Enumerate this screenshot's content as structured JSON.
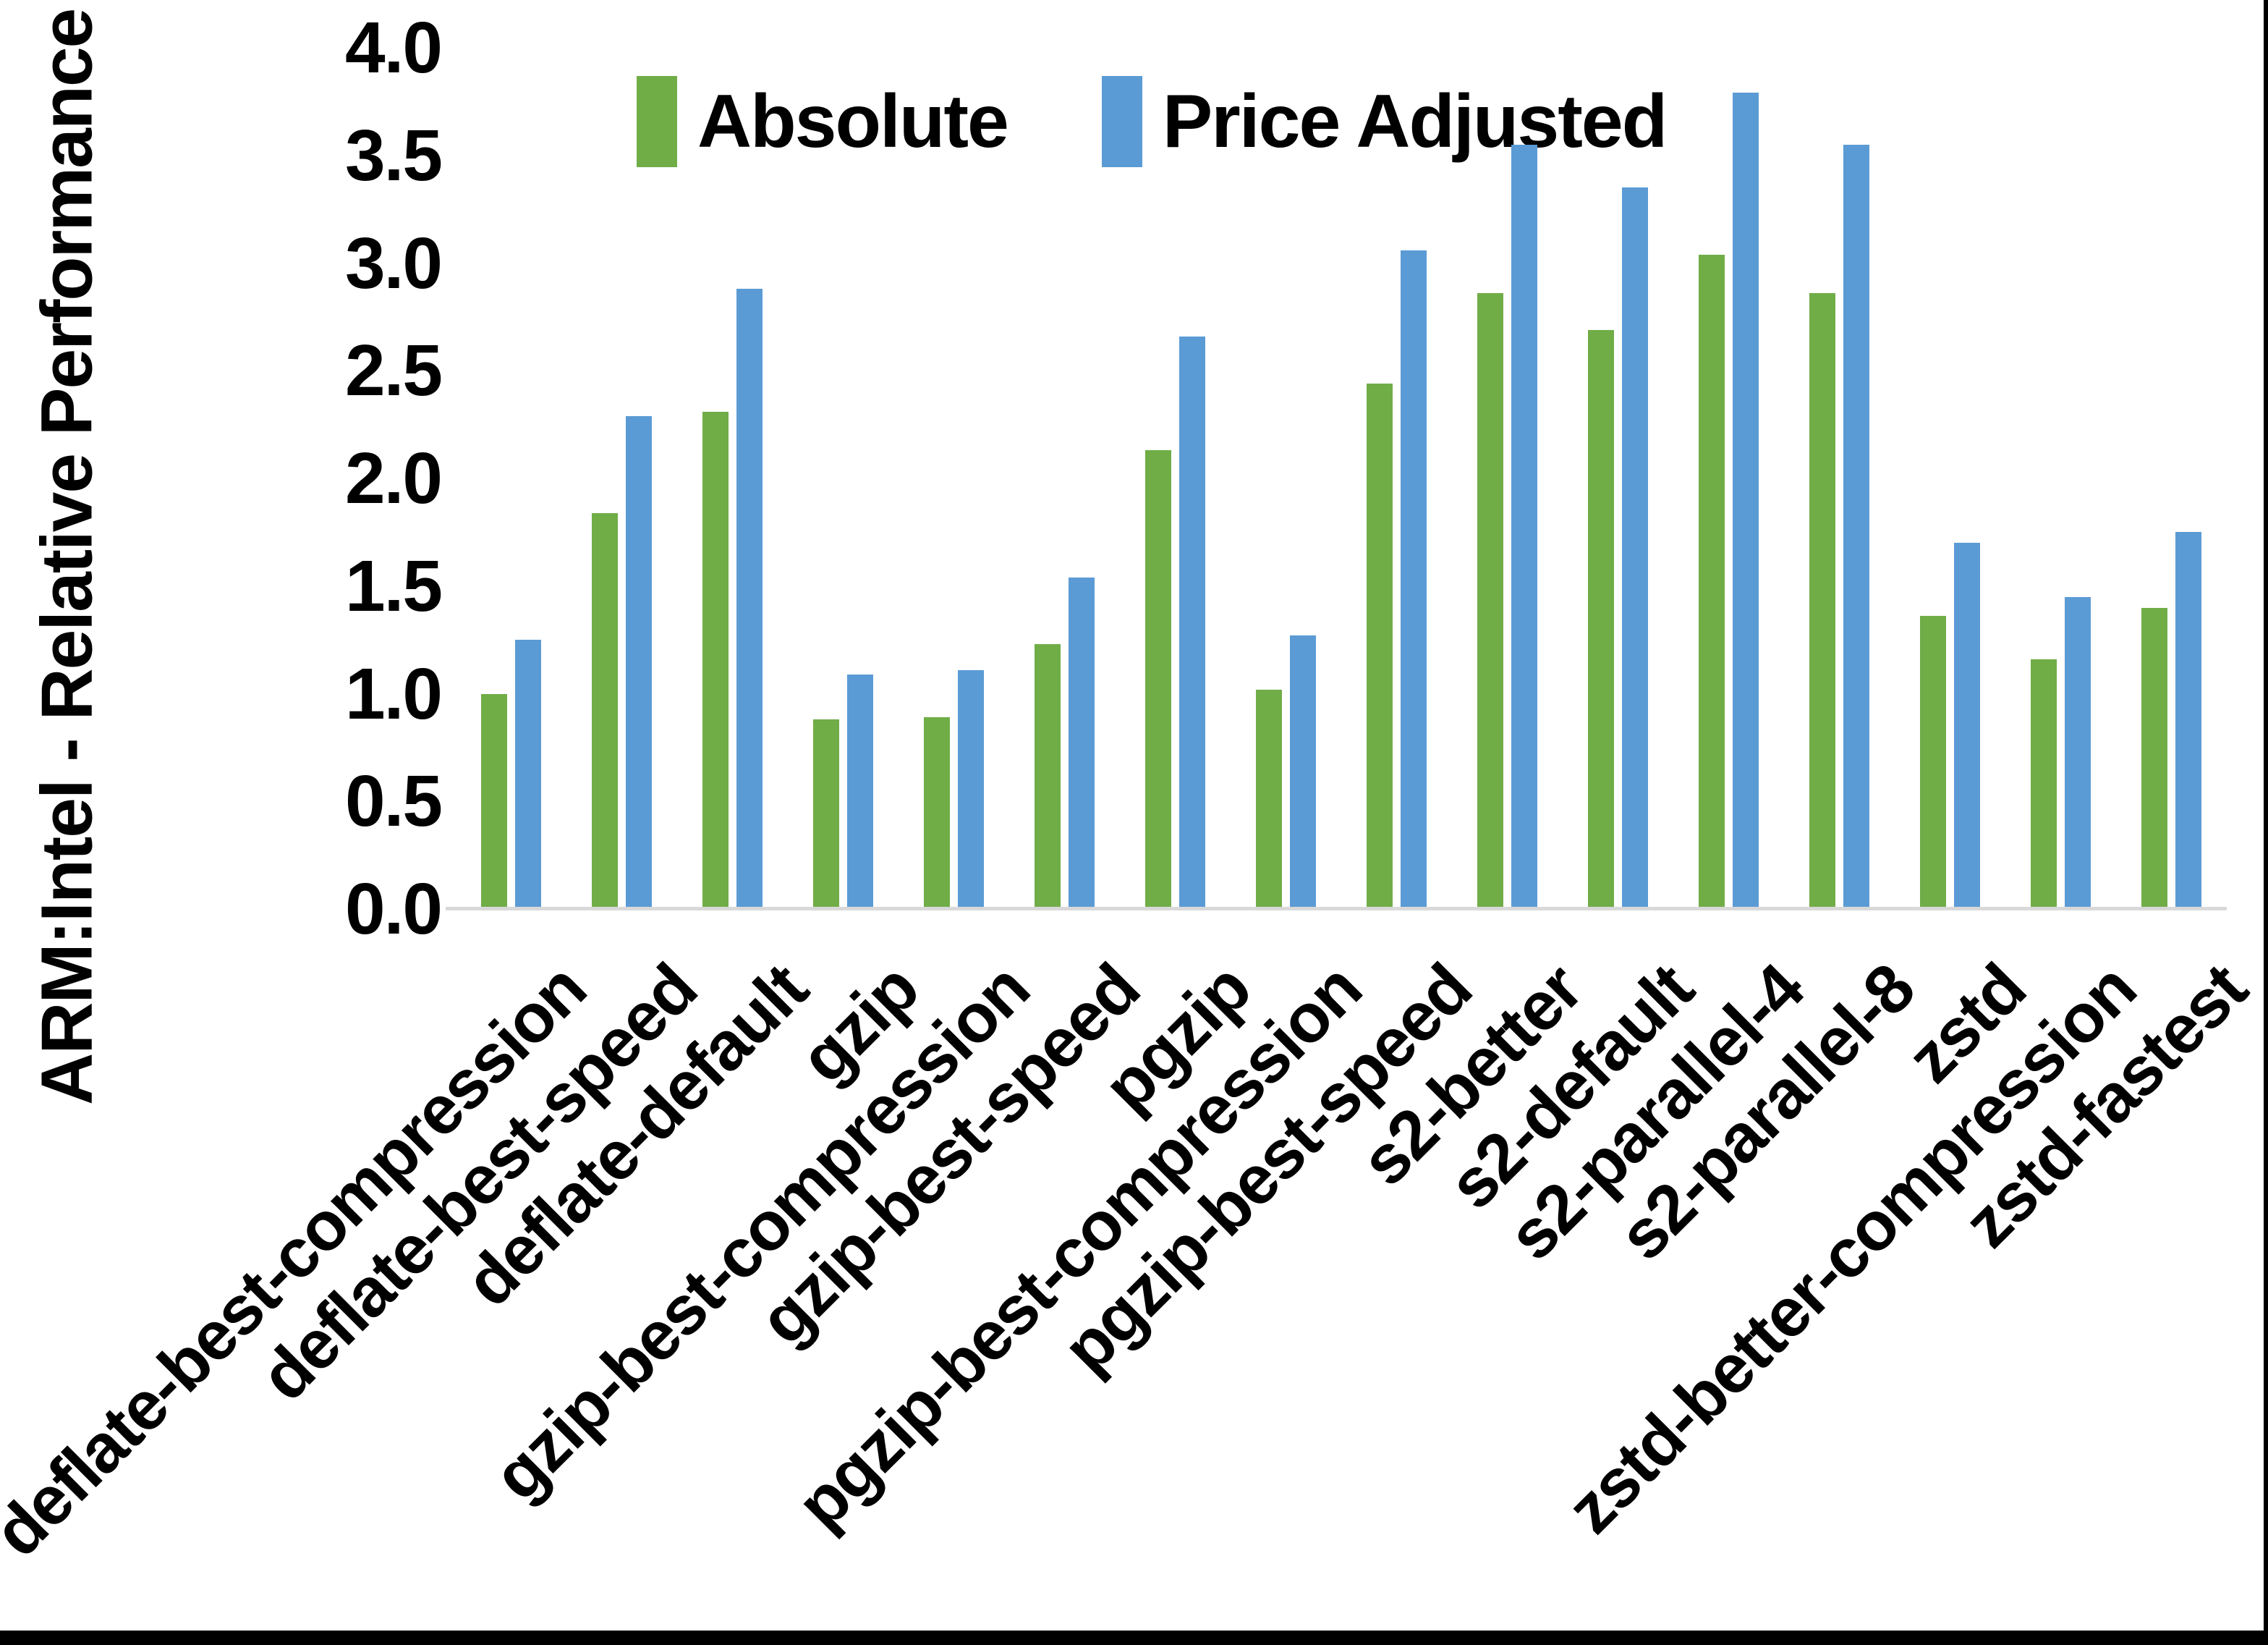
{
  "figure": {
    "background": "#ffffff",
    "border_color": "#000000",
    "axis_line_color": "#d9d9d9",
    "text_color": "#000000"
  },
  "chart_data": {
    "type": "bar",
    "title": "",
    "xlabel": "",
    "ylabel": "ARM:Intel - Relative Performance",
    "ylim": [
      0.0,
      4.0
    ],
    "ytick_step": 0.5,
    "yticks": [
      "4.0",
      "3.5",
      "3.0",
      "2.5",
      "2.0",
      "1.5",
      "1.0",
      "0.5",
      "0.0"
    ],
    "grid": false,
    "legend_position": "top-center",
    "categories": [
      "deflate-best-compression",
      "deflate-best-speed",
      "deflate-default",
      "gzip",
      "gzip-best-compression",
      "gzip-best-speed",
      "pgzip",
      "pgzip-best-compression",
      "pgzip-best-speed",
      "s2-better",
      "s2-default",
      "s2-parallel-4",
      "s2-parallel-8",
      "zstd",
      "zstd-better-compression",
      "zstd-fastest"
    ],
    "series": [
      {
        "name": "Absolute",
        "color": "#70AD47",
        "values": [
          1.0,
          1.84,
          2.31,
          0.88,
          0.89,
          1.23,
          2.13,
          1.02,
          2.44,
          2.86,
          2.69,
          3.04,
          2.86,
          1.36,
          1.16,
          1.4
        ]
      },
      {
        "name": "Price Adjusted",
        "color": "#5B9BD5",
        "values": [
          1.25,
          2.29,
          2.88,
          1.09,
          1.11,
          1.54,
          2.66,
          1.27,
          3.06,
          3.55,
          3.35,
          3.79,
          3.55,
          1.7,
          1.45,
          1.75
        ]
      }
    ]
  }
}
